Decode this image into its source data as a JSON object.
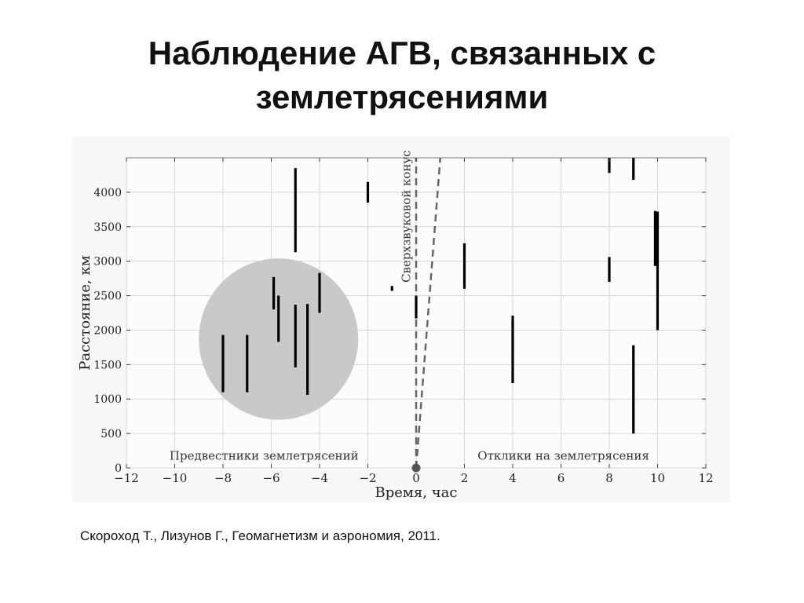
{
  "slide": {
    "title_lines": [
      "Наблюдение АГВ, связанных с",
      "землетрясениями"
    ],
    "citation": "Скороход Т., Лизунов Г., Геомагнетизм и аэрономия, 2011."
  },
  "chart_data": {
    "type": "scatter",
    "title": "",
    "xlabel": "Время, час",
    "ylabel": "Расстояние, км",
    "xlim": [
      -12,
      12
    ],
    "ylim": [
      0,
      4500
    ],
    "xticks": [
      -12,
      -10,
      -8,
      -6,
      -4,
      -2,
      0,
      2,
      4,
      6,
      8,
      10,
      12
    ],
    "xtick_labels": [
      "−12",
      "−10",
      "−8",
      "−6",
      "−4",
      "−2",
      "0",
      "2",
      "4",
      "6",
      "8",
      "10",
      "12"
    ],
    "yticks": [
      0,
      500,
      1000,
      1500,
      2000,
      2500,
      3000,
      3500,
      4000
    ],
    "ytick_labels": [
      "0",
      "500",
      "1000",
      "1500",
      "2000",
      "2500",
      "3000",
      "3500",
      "4000"
    ],
    "grid": true,
    "series": [
      {
        "mark": "vertical-segment",
        "color": "#000000",
        "segments": [
          {
            "x": -8,
            "y0": 1100,
            "y1": 1930
          },
          {
            "x": -7,
            "y0": 1100,
            "y1": 1930
          },
          {
            "x": -5.9,
            "y0": 2300,
            "y1": 2770
          },
          {
            "x": -5.7,
            "y0": 1830,
            "y1": 2500
          },
          {
            "x": -5,
            "y0": 3130,
            "y1": 4350
          },
          {
            "x": -5,
            "y0": 1460,
            "y1": 2370
          },
          {
            "x": -4.5,
            "y0": 1060,
            "y1": 2380
          },
          {
            "x": -4,
            "y0": 2250,
            "y1": 2830
          },
          {
            "x": -2,
            "y0": 3850,
            "y1": 4150
          },
          {
            "x": -1,
            "y0": 2570,
            "y1": 2640
          },
          {
            "x": 0,
            "y0": 2170,
            "y1": 2500
          },
          {
            "x": 2,
            "y0": 2600,
            "y1": 3260
          },
          {
            "x": 4,
            "y0": 1230,
            "y1": 2210
          },
          {
            "x": 8,
            "y0": 4280,
            "y1": 4500
          },
          {
            "x": 8,
            "y0": 2700,
            "y1": 3060
          },
          {
            "x": 9,
            "y0": 4180,
            "y1": 4500
          },
          {
            "x": 9,
            "y0": 500,
            "y1": 1780
          },
          {
            "x": 9.9,
            "y0": 2930,
            "y1": 3730
          },
          {
            "x": 10,
            "y0": 2000,
            "y1": 3720
          }
        ]
      }
    ],
    "highlight_circle": {
      "cx": -5.7,
      "cy": 1870,
      "rx": 3.3,
      "ry": 1170,
      "color": "#c8cac8"
    },
    "origin_point": {
      "x": 0,
      "y": 0,
      "color": "#555555"
    },
    "cone_lines": [
      {
        "points": [
          [
            0,
            0
          ],
          [
            0,
            4500
          ]
        ],
        "color": "#666666",
        "style": "dashed"
      },
      {
        "points": [
          [
            0,
            0
          ],
          [
            1,
            4500
          ]
        ],
        "color": "#666666",
        "style": "dashed"
      }
    ],
    "annotations": [
      {
        "text": "Сверхзвуковой конус",
        "x": -0.25,
        "y": 3650,
        "rotation": -90
      },
      {
        "text": "Предвестники землетрясений",
        "x": -6.3,
        "y": 120
      },
      {
        "text": "Отклики на землетрясения",
        "x": 6.1,
        "y": 120
      }
    ]
  }
}
